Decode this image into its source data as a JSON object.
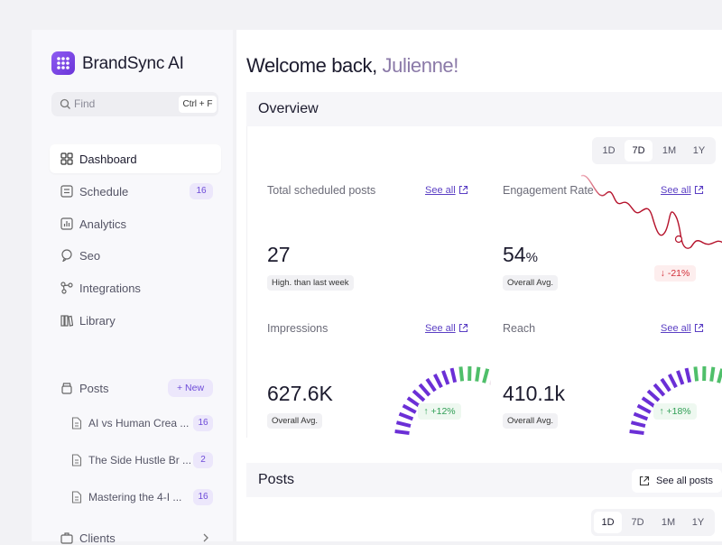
{
  "sidebar": {
    "brand": "BrandSync AI",
    "search": {
      "placeholder": "Find",
      "shortcut": "Ctrl + F"
    },
    "nav": [
      {
        "label": "Dashboard"
      },
      {
        "label": "Schedule",
        "badge": 16
      },
      {
        "label": "Analytics"
      },
      {
        "label": "Seo"
      },
      {
        "label": "Integrations"
      },
      {
        "label": "Library"
      }
    ],
    "posts": {
      "label": "Posts",
      "new": "New",
      "items": [
        {
          "title": "AI vs Human Crea ...",
          "count": 16
        },
        {
          "title": "The Side Hustle Br ...",
          "count": 2
        },
        {
          "title": "Mastering the 4-I ...",
          "count": 16
        }
      ]
    },
    "clients": "Clients"
  },
  "header": {
    "greeting": "Welcome back,",
    "name": "Julienne!"
  },
  "overview": {
    "title": "Overview",
    "ranges": [
      "1D",
      "7D",
      "1M",
      "1Y"
    ],
    "cards": [
      {
        "title": "Total scheduled posts",
        "link": "See all",
        "value": 27,
        "note": "High. than last week"
      },
      {
        "title": "Engagement Rate",
        "link": "See all",
        "value": 54,
        "unit": "%",
        "note": "Overall Avg.",
        "change": "-21%"
      },
      {
        "title": "Impressions",
        "link": "See all",
        "value": "627.6K",
        "note": "Overall Avg.",
        "change": "+12%"
      },
      {
        "title": "Reach",
        "link": "See all",
        "value": "410.1k",
        "note": "Overall Avg.",
        "change": "+18%"
      }
    ]
  },
  "posts_section": {
    "title": "Posts",
    "see_all": "See all posts",
    "ranges": [
      "1D",
      "7D",
      "1M",
      "1Y"
    ]
  }
}
